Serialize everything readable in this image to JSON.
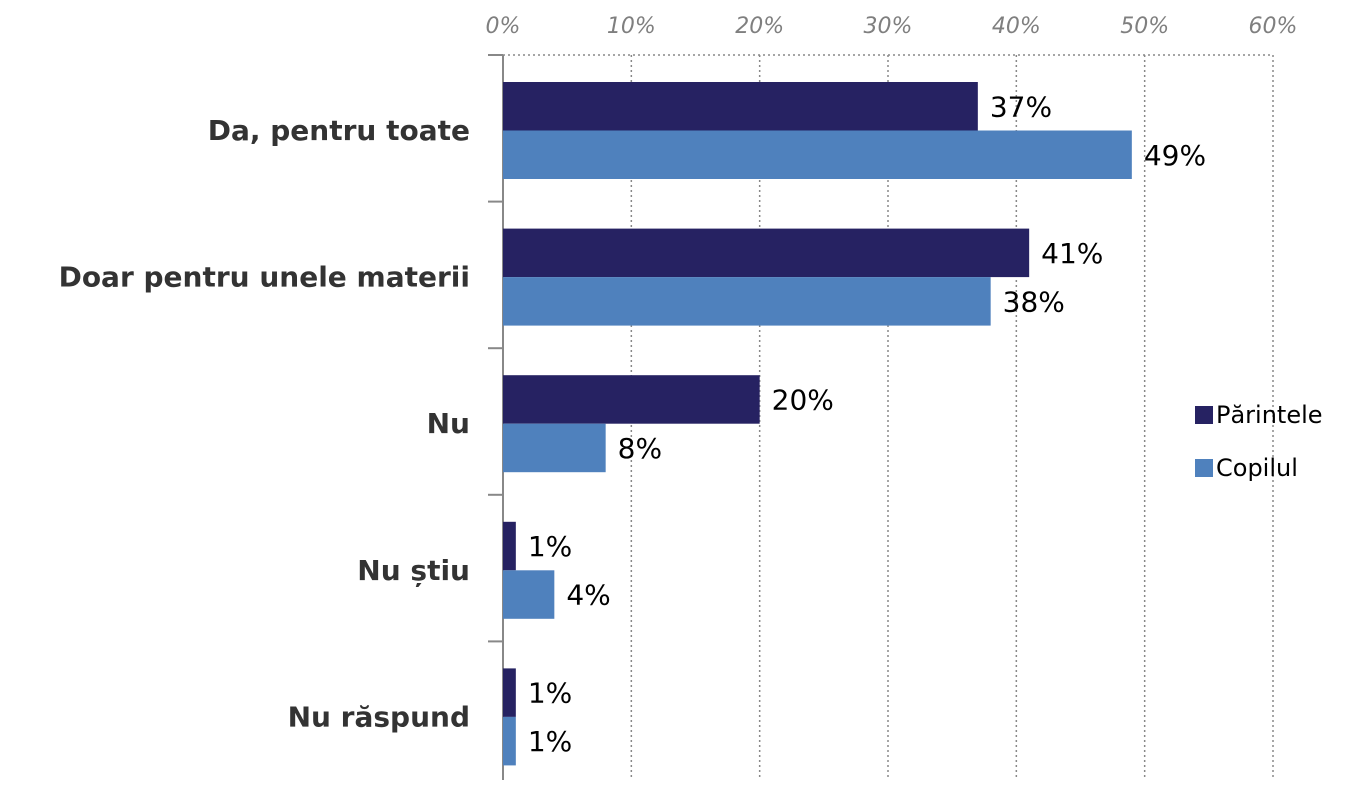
{
  "chart_data": {
    "type": "barh",
    "categories": [
      "Da, pentru toate",
      "Doar pentru unele materii",
      "Nu",
      "Nu știu",
      "Nu răspund"
    ],
    "series": [
      {
        "name": "Părintele",
        "color": "#262262",
        "values": [
          37,
          41,
          20,
          1,
          1
        ],
        "value_labels": [
          "37%",
          "41%",
          "20%",
          "1%",
          "1%"
        ]
      },
      {
        "name": "Copilul",
        "color": "#4f81bd",
        "values": [
          49,
          38,
          8,
          4,
          1
        ],
        "value_labels": [
          "49%",
          "38%",
          "8%",
          "4%",
          "1%"
        ]
      }
    ],
    "xlim": [
      0,
      60
    ],
    "xticks": [
      {
        "value": 0,
        "label": "0%"
      },
      {
        "value": 10,
        "label": "10%"
      },
      {
        "value": 20,
        "label": "20%"
      },
      {
        "value": 30,
        "label": "30%"
      },
      {
        "value": 40,
        "label": "40%"
      },
      {
        "value": 50,
        "label": "50%"
      },
      {
        "value": 60,
        "label": "60%"
      }
    ],
    "grid": true,
    "legend": "right"
  }
}
